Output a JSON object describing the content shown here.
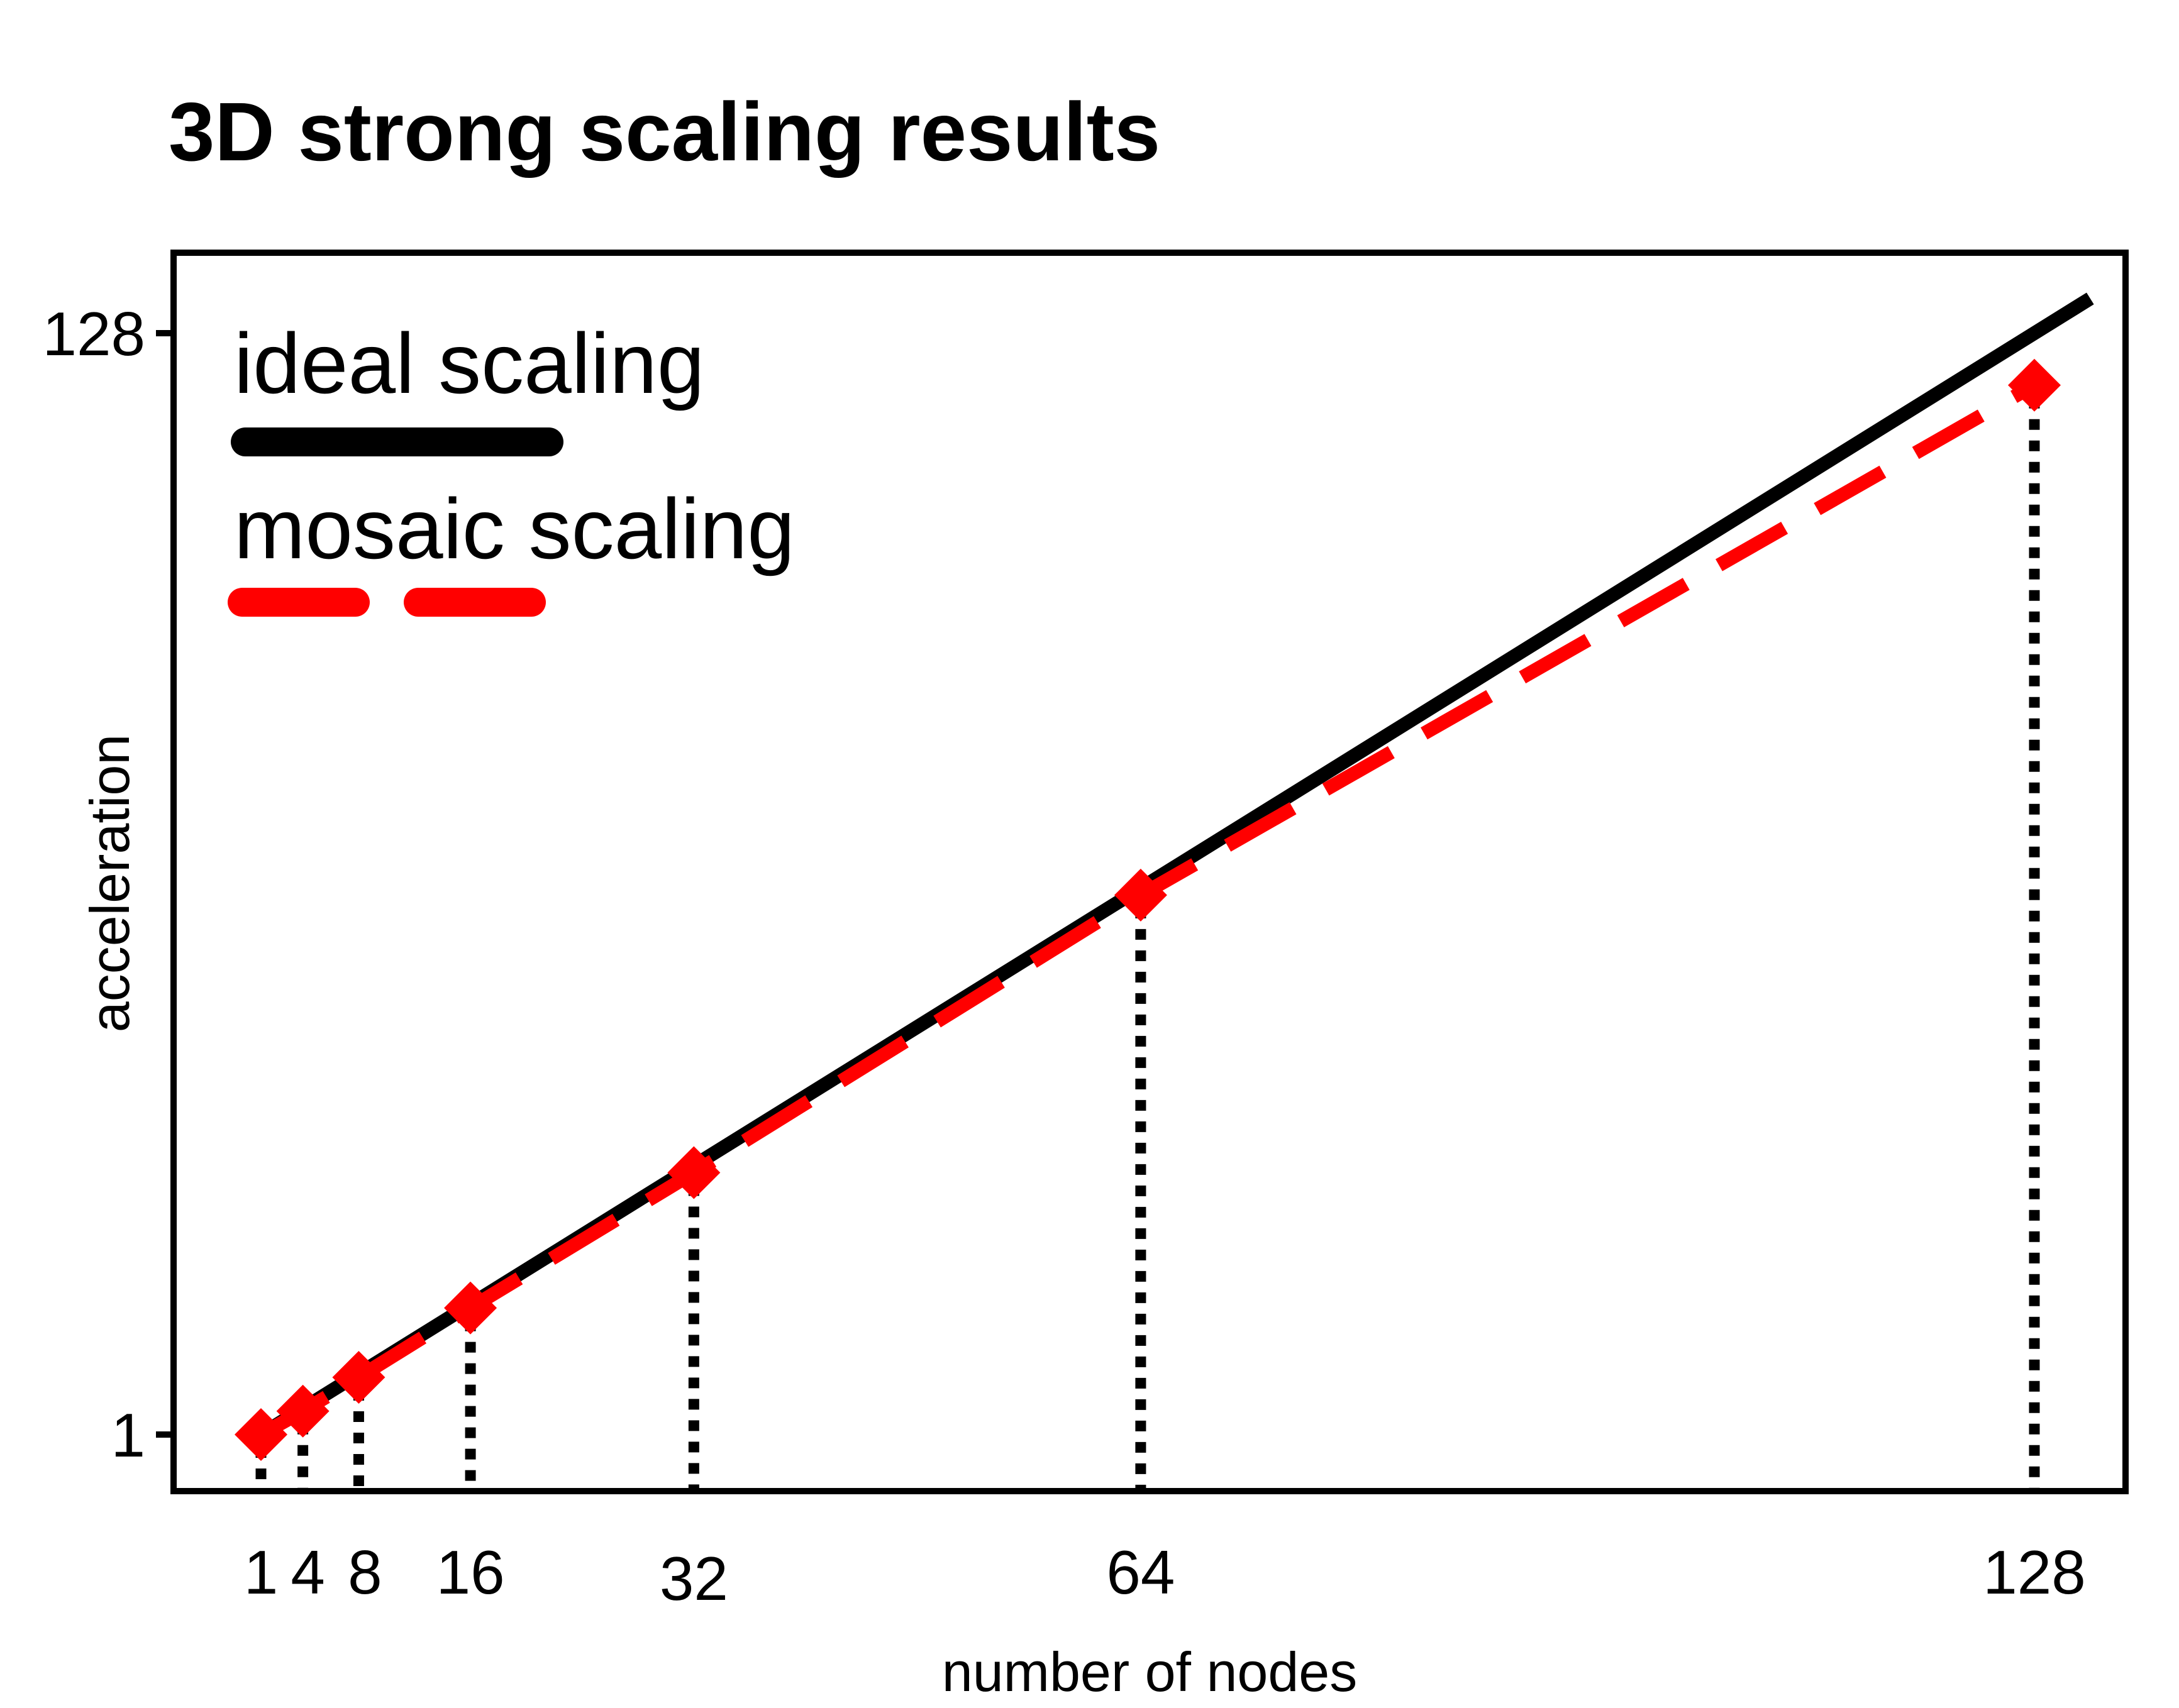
{
  "chart_data": {
    "type": "line",
    "title": "3D strong scaling results",
    "xlabel": "number of nodes",
    "ylabel": "acceleration",
    "x_ticks": [
      "1",
      "4",
      "8",
      "16",
      "32",
      "64",
      "128"
    ],
    "y_ticks": [
      "1",
      "128"
    ],
    "x": [
      1,
      4,
      8,
      16,
      32,
      64,
      128
    ],
    "series": [
      {
        "name": "ideal scaling",
        "style": "solid",
        "color": "#000000",
        "values": [
          1,
          4,
          8,
          16,
          32,
          64,
          128
        ]
      },
      {
        "name": "mosaic scaling",
        "style": "dashed",
        "color": "#ff0000",
        "marker": "diamond",
        "values": [
          1,
          3.7,
          7.6,
          15.6,
          31.2,
          63.2,
          122
        ]
      }
    ],
    "scale": "log2",
    "grid": false,
    "drop_lines": "dotted",
    "legend_position": "top-left"
  }
}
